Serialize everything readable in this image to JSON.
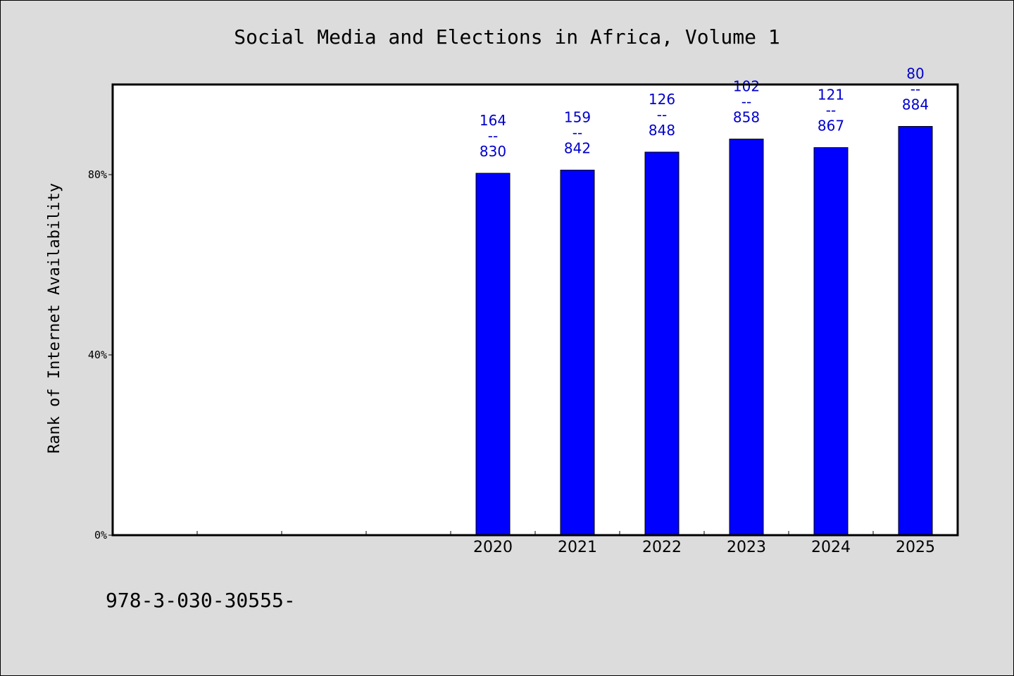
{
  "chart_data": {
    "type": "bar",
    "title": "Social Media and Elections in Africa, Volume 1",
    "xlabel": "",
    "ylabel": "Rank of Internet Availability",
    "categories": [
      "",
      "",
      "",
      "",
      "2020",
      "2021",
      "2022",
      "2023",
      "2024",
      "2025"
    ],
    "values": [
      null,
      null,
      null,
      null,
      80.3,
      81.0,
      85.0,
      87.9,
      86.0,
      90.7
    ],
    "value_unit": "%",
    "data_labels": [
      {
        "top": "164",
        "sep": "--",
        "bottom": "830"
      },
      {
        "top": "159",
        "sep": "--",
        "bottom": "842"
      },
      {
        "top": "126",
        "sep": "--",
        "bottom": "848"
      },
      {
        "top": "102",
        "sep": "--",
        "bottom": "858"
      },
      {
        "top": "121",
        "sep": "--",
        "bottom": "867"
      },
      {
        "top": "80",
        "sep": "--",
        "bottom": "884"
      }
    ],
    "ylim": [
      0,
      100
    ],
    "yticks": [
      {
        "value": 0,
        "label": "0%"
      },
      {
        "value": 40,
        "label": "40%"
      },
      {
        "value": 80,
        "label": "80%"
      }
    ],
    "grid": false,
    "legend": "none",
    "colors": {
      "bar": "#0000ff",
      "label": "#0000cc",
      "background": "#dcdcdc",
      "plot": "#ffffff"
    }
  },
  "footer": {
    "text": "978-3-030-30555-"
  }
}
